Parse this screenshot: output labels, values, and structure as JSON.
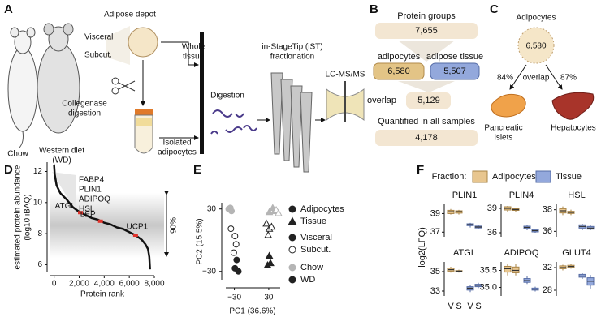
{
  "panel_labels": [
    "A",
    "B",
    "C",
    "D",
    "E",
    "F"
  ],
  "workflow": {
    "adipose_depot": "Adipose depot",
    "visceral": "Visceral",
    "subcut": "Subcut.",
    "whole_tissue": [
      "Whole",
      "tissue"
    ],
    "collagenase": [
      "Collegenase",
      "digestion"
    ],
    "isolated": [
      "Isolated",
      "adipocytes"
    ],
    "chow": "Chow",
    "western": [
      "Western diet",
      "(WD)"
    ],
    "digestion": "Digestion",
    "ist": [
      "in-StageTip (iST)",
      "fractionation"
    ],
    "lcms": "LC-MS/MS"
  },
  "protein_groups": {
    "title": "Protein groups",
    "total": "7,655",
    "adipocytes_label": "adipocytes",
    "tissue_label": "adipose tissue",
    "adipocytes": "6,580",
    "tissue": "5,507",
    "overlap_label": "overlap",
    "overlap": "5,129",
    "quantified_label": "Quantified in all samples",
    "quantified": "4,178"
  },
  "overlap_panel": {
    "title": "Adipocytes",
    "count": "6,580",
    "left_pct": "84%",
    "overlap_label": "overlap",
    "right_pct": "87%",
    "left_tissue": [
      "Pancreatic",
      "islets"
    ],
    "right_tissue": "Hepatocytes"
  },
  "chart_data": [
    {
      "type": "line",
      "y_label": [
        "estimated protein abundance",
        "(log10 iBAQ)"
      ],
      "x_label": "Protein rank",
      "x": [
        0,
        50,
        200,
        500,
        1000,
        1500,
        2000,
        2500,
        3000,
        3500,
        4000,
        4500,
        5000,
        5500,
        6000,
        6500,
        7000,
        7300,
        7500,
        7600,
        7655
      ],
      "values": [
        12.4,
        11.8,
        11.1,
        10.6,
        10.2,
        9.7,
        9.4,
        9.2,
        9.0,
        8.9,
        8.7,
        8.6,
        8.4,
        8.3,
        8.1,
        7.9,
        7.6,
        7.3,
        7.0,
        6.5,
        5.7
      ],
      "color": "#111111",
      "xlim": [
        -300,
        8000
      ],
      "ylim": [
        5.5,
        12.6
      ],
      "xticks": [
        0,
        {
          "value": 2000,
          "label": "2,000"
        },
        {
          "value": 4000,
          "label": "4,000"
        },
        {
          "value": 6000,
          "label": "6,000"
        },
        {
          "value": 8000,
          "label": "8,000"
        }
      ],
      "yticks": [
        6,
        8,
        10,
        12
      ],
      "top_labels": [
        "FABP4",
        "PLIN1",
        "ADIPOQ",
        "HSL"
      ],
      "highlights": [
        {
          "label": "ATGL",
          "x": 2100,
          "y": 9.35
        },
        {
          "label": "LEP",
          "x": 3700,
          "y": 8.8
        },
        {
          "label": "UCP1",
          "x": 6500,
          "y": 7.9
        }
      ],
      "highlight_color": "#e0322a",
      "band_label": "90%"
    },
    {
      "type": "scatter",
      "x_label": "PC1 (36.6%)",
      "y_label": "PC2 (15.5%)",
      "xlim": [
        -45,
        50
      ],
      "ylim": [
        -38,
        36
      ],
      "xticks": [
        {
          "value": -30,
          "label": "−30"
        },
        30
      ],
      "yticks": [
        30,
        {
          "value": -30,
          "label": "−30"
        }
      ],
      "series": [
        {
          "marker": "circle",
          "fill": "#b5b5b5",
          "stroke": "#b5b5b5",
          "x": [
            -40,
            -37,
            -35
          ],
          "values": [
            30,
            31,
            28
          ]
        },
        {
          "marker": "circle",
          "fill": "#ffffff",
          "stroke": "#222222",
          "x": [
            -36,
            -29,
            -27,
            -31
          ],
          "values": [
            11,
            4,
            -4,
            -12
          ]
        },
        {
          "marker": "circle",
          "fill": "#222222",
          "stroke": "#222222",
          "x": [
            -26,
            -29,
            -23
          ],
          "values": [
            -19,
            -27,
            -30
          ]
        },
        {
          "marker": "triangle",
          "fill": "#b5b5b5",
          "stroke": "#b5b5b5",
          "x": [
            31,
            37,
            40
          ],
          "values": [
            27,
            31,
            28
          ]
        },
        {
          "marker": "triangle",
          "fill": "#ffffff",
          "stroke": "#b5b5b5",
          "x": [
            43,
            47
          ],
          "values": [
            29,
            26
          ]
        },
        {
          "marker": "triangle",
          "fill": "#ffffff",
          "stroke": "#222222",
          "x": [
            26,
            31,
            35,
            29
          ],
          "values": [
            16,
            11,
            13,
            5
          ]
        },
        {
          "marker": "triangle",
          "fill": "#222222",
          "stroke": "#222222",
          "x": [
            31,
            33,
            28
          ],
          "values": [
            -15,
            -22,
            -24
          ]
        }
      ],
      "legend": [
        {
          "label": "Adipocytes",
          "marker": "circle",
          "fill": "#222222",
          "stroke": "#222222"
        },
        {
          "label": "Tissue",
          "marker": "triangle",
          "fill": "#222222",
          "stroke": "#222222"
        },
        {
          "label": "Visceral",
          "marker": "circle",
          "fill": "#222222",
          "stroke": "#222222"
        },
        {
          "label": "Subcut.",
          "marker": "circle",
          "fill": "#ffffff",
          "stroke": "#222222"
        },
        {
          "label": "Chow",
          "marker": "circle",
          "fill": "#b5b5b5",
          "stroke": "#b5b5b5"
        },
        {
          "label": "WD",
          "marker": "circle",
          "fill": "#222222",
          "stroke": "#222222"
        }
      ]
    },
    {
      "type": "box",
      "legend_title": "Fraction:",
      "y_label": "log2(LFQ)",
      "x_labels": [
        "V",
        "S",
        "V",
        "S"
      ],
      "series": [
        {
          "name": "Adipocytes",
          "color": "#e8c68f",
          "stroke": "#a98446"
        },
        {
          "name": "Tissue",
          "color": "#93a8dc",
          "stroke": "#566ca6"
        }
      ],
      "panels": [
        {
          "title": "PLIN1",
          "ylim": [
            36.5,
            40
          ],
          "yticks": [
            39,
            37
          ],
          "boxes": [
            {
              "whislo": 38.9,
              "q1": 39.0,
              "med": 39.2,
              "q3": 39.35,
              "whishi": 39.5
            },
            {
              "whislo": 38.9,
              "q1": 39.05,
              "med": 39.2,
              "q3": 39.3,
              "whishi": 39.4
            },
            {
              "whislo": 37.5,
              "q1": 37.7,
              "med": 37.8,
              "q3": 37.9,
              "whishi": 38.0
            },
            {
              "whislo": 37.3,
              "q1": 37.45,
              "med": 37.55,
              "q3": 37.65,
              "whishi": 37.8
            }
          ]
        },
        {
          "title": "PLIN4",
          "ylim": [
            35.5,
            39.5
          ],
          "yticks": [
            39,
            36
          ],
          "boxes": [
            {
              "whislo": 38.5,
              "q1": 38.8,
              "med": 39.0,
              "q3": 39.2,
              "whishi": 39.3
            },
            {
              "whislo": 38.6,
              "q1": 38.75,
              "med": 38.85,
              "q3": 38.95,
              "whishi": 39.1
            },
            {
              "whislo": 36.3,
              "q1": 36.5,
              "med": 36.65,
              "q3": 36.8,
              "whishi": 37.0
            },
            {
              "whislo": 36.0,
              "q1": 36.1,
              "med": 36.25,
              "q3": 36.4,
              "whishi": 36.5
            }
          ]
        },
        {
          "title": "HSL",
          "ylim": [
            35.5,
            38.5
          ],
          "yticks": [
            38,
            36
          ],
          "boxes": [
            {
              "whislo": 37.5,
              "q1": 37.7,
              "med": 37.9,
              "q3": 38.1,
              "whishi": 38.3
            },
            {
              "whislo": 37.5,
              "q1": 37.65,
              "med": 37.75,
              "q3": 37.85,
              "whishi": 38.0
            },
            {
              "whislo": 36.1,
              "q1": 36.3,
              "med": 36.45,
              "q3": 36.6,
              "whishi": 36.7
            },
            {
              "whislo": 36.1,
              "q1": 36.2,
              "med": 36.3,
              "q3": 36.45,
              "whishi": 36.55
            }
          ]
        },
        {
          "title": "ATGL",
          "ylim": [
            32.5,
            36
          ],
          "yticks": [
            35,
            33
          ],
          "boxes": [
            {
              "whislo": 34.9,
              "q1": 35.05,
              "med": 35.2,
              "q3": 35.35,
              "whishi": 35.5
            },
            {
              "whislo": 34.9,
              "q1": 35.0,
              "med": 35.05,
              "q3": 35.1,
              "whishi": 35.2
            },
            {
              "whislo": 32.9,
              "q1": 33.1,
              "med": 33.3,
              "q3": 33.45,
              "whishi": 33.6
            },
            {
              "whislo": 33.3,
              "q1": 33.45,
              "med": 33.6,
              "q3": 33.7,
              "whishi": 33.85
            }
          ]
        },
        {
          "title": "ADIPOQ",
          "ylim": [
            34.75,
            35.75
          ],
          "yticks": [
            35.5,
            {
              "value": 35,
              "label": "35.0"
            }
          ],
          "boxes": [
            {
              "whislo": 35.35,
              "q1": 35.45,
              "med": 35.55,
              "q3": 35.62,
              "whishi": 35.7
            },
            {
              "whislo": 35.35,
              "q1": 35.43,
              "med": 35.5,
              "q3": 35.6,
              "whishi": 35.68
            },
            {
              "whislo": 35.1,
              "q1": 35.15,
              "med": 35.2,
              "q3": 35.26,
              "whishi": 35.32
            },
            {
              "whislo": 34.88,
              "q1": 34.92,
              "med": 34.95,
              "q3": 34.98,
              "whishi": 35.02
            }
          ]
        },
        {
          "title": "GLUT4",
          "ylim": [
            27,
            33
          ],
          "yticks": [
            32,
            28
          ],
          "boxes": [
            {
              "whislo": 31.5,
              "q1": 31.8,
              "med": 32.0,
              "q3": 32.3,
              "whishi": 32.5
            },
            {
              "whislo": 31.8,
              "q1": 32.0,
              "med": 32.2,
              "q3": 32.4,
              "whishi": 32.6
            },
            {
              "whislo": 30.0,
              "q1": 30.3,
              "med": 30.5,
              "q3": 30.8,
              "whishi": 31.0
            },
            {
              "whislo": 28.3,
              "q1": 28.9,
              "med": 29.6,
              "q3": 30.2,
              "whishi": 30.7
            }
          ]
        }
      ]
    }
  ]
}
